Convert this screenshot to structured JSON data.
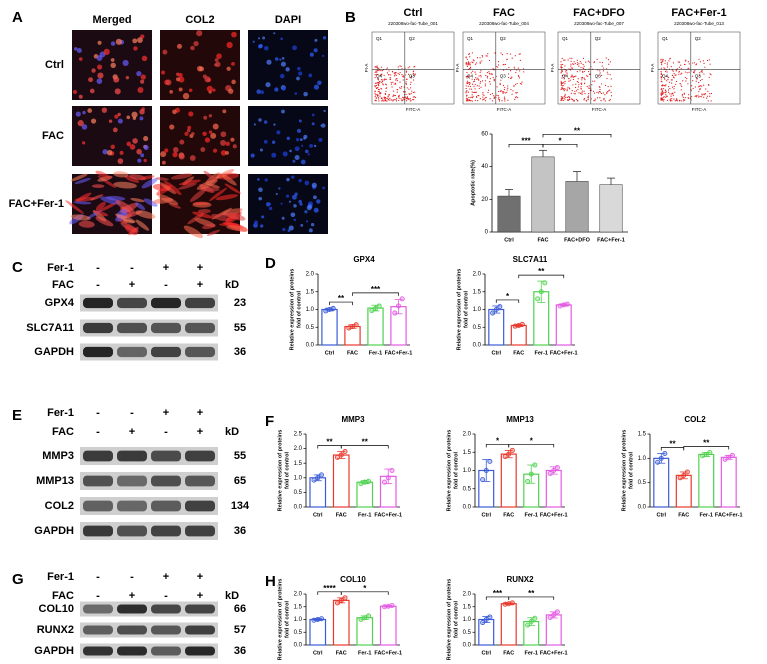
{
  "panels": {
    "A": {
      "label": "A",
      "columns": [
        "Merged",
        "COL2",
        "DAPI"
      ],
      "rows": [
        "Ctrl",
        "FAC",
        "FAC+Fer-1"
      ]
    },
    "B": {
      "label": "B",
      "plots": [
        {
          "title": "Ctrl",
          "tube": "220308wo-fac-Tube_001"
        },
        {
          "title": "FAC",
          "tube": "220308wo-fac-Tube_004"
        },
        {
          "title": "FAC+DFO",
          "tube": "220308wo-fac-Tube_007"
        },
        {
          "title": "FAC+Fer-1",
          "tube": "220308wo-fac-Tube_013"
        }
      ],
      "quadrants": [
        "Q1",
        "Q2",
        "Q3",
        "Q4"
      ],
      "x_axis": "FITC-A",
      "y_axis": "PI-A"
    },
    "C": {
      "label": "C",
      "unit": "kD",
      "treatments": [
        {
          "name": "Fer-1",
          "signs": [
            "-",
            "-",
            "+",
            "+"
          ]
        },
        {
          "name": "FAC",
          "signs": [
            "-",
            "+",
            "-",
            "+"
          ]
        }
      ],
      "bands": [
        {
          "name": "GPX4",
          "kd": 23
        },
        {
          "name": "SLC7A11",
          "kd": 55
        },
        {
          "name": "GAPDH",
          "kd": 36
        }
      ]
    },
    "D": {
      "label": "D"
    },
    "E": {
      "label": "E",
      "unit": "kD",
      "treatments": [
        {
          "name": "Fer-1",
          "signs": [
            "-",
            "-",
            "+",
            "+"
          ]
        },
        {
          "name": "FAC",
          "signs": [
            "-",
            "+",
            "-",
            "+"
          ]
        }
      ],
      "bands": [
        {
          "name": "MMP3",
          "kd": 55
        },
        {
          "name": "MMP13",
          "kd": 65
        },
        {
          "name": "COL2",
          "kd": 134
        },
        {
          "name": "GAPDH",
          "kd": 36
        }
      ]
    },
    "F": {
      "label": "F"
    },
    "G": {
      "label": "G",
      "unit": "kD",
      "treatments": [
        {
          "name": "Fer-1",
          "signs": [
            "-",
            "-",
            "+",
            "+"
          ]
        },
        {
          "name": "FAC",
          "signs": [
            "-",
            "+",
            "-",
            "+"
          ]
        }
      ],
      "bands": [
        {
          "name": "COL10",
          "kd": 66
        },
        {
          "name": "RUNX2",
          "kd": 57
        },
        {
          "name": "GAPDH",
          "kd": 36
        }
      ]
    },
    "H": {
      "label": "H"
    }
  },
  "chart_data": [
    {
      "type": "bar",
      "bar_style": "filled",
      "ylabel": [
        "Apoptotic rate(%)"
      ],
      "categories": [
        "Ctrl",
        "FAC",
        "FAC+DFO",
        "FAC+Fer-1"
      ],
      "values": [
        22,
        46,
        31,
        29
      ],
      "errors": [
        4,
        4,
        6,
        4
      ],
      "colors": [
        "#707070",
        "#c4c4c4",
        "#a6a6a6",
        "#d9d9d9"
      ],
      "ylim": [
        0,
        60
      ],
      "yticks": [
        0,
        20,
        40,
        60
      ],
      "significance": [
        {
          "between": [
            "Ctrl",
            "FAC"
          ],
          "label": "***"
        },
        {
          "between": [
            "FAC",
            "FAC+DFO"
          ],
          "label": "*"
        },
        {
          "between": [
            "FAC",
            "FAC+Fer-1"
          ],
          "label": "**"
        }
      ]
    },
    {
      "type": "bar",
      "bar_style": "outline",
      "title": "GPX4",
      "ylabel": [
        "Relative expression of proteins",
        "fold of control"
      ],
      "categories": [
        "Ctrl",
        "FAC",
        "Fer-1",
        "FAC+Fer-1"
      ],
      "values": [
        1.0,
        0.52,
        1.04,
        1.08
      ],
      "errors": [
        0.04,
        0.05,
        0.08,
        0.2
      ],
      "points": [
        [
          0.96,
          1.0,
          1.03
        ],
        [
          0.48,
          0.52,
          0.57
        ],
        [
          0.97,
          1.03,
          1.1
        ],
        [
          0.9,
          1.1,
          1.3
        ]
      ],
      "colors": [
        "#3b5bd6",
        "#e8392c",
        "#4fd24f",
        "#e35be3"
      ],
      "ylim": [
        0,
        2
      ],
      "yticks": [
        {
          "value": 0,
          "label": "0.0"
        },
        0.5,
        {
          "value": 1,
          "label": "1.0"
        },
        1.5,
        {
          "value": 2,
          "label": "2.0"
        }
      ],
      "significance": [
        {
          "between": [
            "Ctrl",
            "FAC"
          ],
          "label": "**"
        },
        {
          "between": [
            "FAC",
            "FAC+Fer-1"
          ],
          "label": "***"
        }
      ]
    },
    {
      "type": "bar",
      "bar_style": "outline",
      "title": "SLC7A11",
      "ylabel": [
        "Relative expression of proteins",
        "fold of control"
      ],
      "categories": [
        "Ctrl",
        "FAC",
        "Fer-1",
        "FAC+Fer-1"
      ],
      "values": [
        1.0,
        0.55,
        1.5,
        1.13
      ],
      "errors": [
        0.1,
        0.03,
        0.3,
        0.03
      ],
      "points": [
        [
          0.9,
          1.0,
          1.08
        ],
        [
          0.53,
          0.55,
          0.58
        ],
        [
          1.3,
          1.5,
          1.75
        ],
        [
          1.1,
          1.13,
          1.15
        ]
      ],
      "colors": [
        "#3b5bd6",
        "#e8392c",
        "#4fd24f",
        "#e35be3"
      ],
      "ylim": [
        0,
        2
      ],
      "yticks": [
        {
          "value": 0,
          "label": "0.0"
        },
        0.5,
        {
          "value": 1,
          "label": "1.0"
        },
        1.5,
        {
          "value": 2,
          "label": "2.0"
        }
      ],
      "significance": [
        {
          "between": [
            "Ctrl",
            "FAC"
          ],
          "label": "*"
        },
        {
          "between": [
            "FAC",
            "FAC+Fer-1"
          ],
          "label": "**"
        }
      ]
    },
    {
      "type": "bar",
      "bar_style": "outline",
      "title": "MMP3",
      "ylabel": [
        "Relative expression of proteins",
        "fold of control"
      ],
      "categories": [
        "Ctrl",
        "FAC",
        "Fer-1",
        "FAC+Fer-1"
      ],
      "values": [
        1.0,
        1.78,
        0.85,
        1.05
      ],
      "errors": [
        0.1,
        0.12,
        0.05,
        0.25
      ],
      "points": [
        [
          0.92,
          1.0,
          1.1
        ],
        [
          1.7,
          1.78,
          1.9
        ],
        [
          0.8,
          0.85,
          0.88
        ],
        [
          0.85,
          1.0,
          1.25
        ]
      ],
      "colors": [
        "#3b5bd6",
        "#e8392c",
        "#4fd24f",
        "#e35be3"
      ],
      "ylim": [
        0,
        2.5
      ],
      "yticks": [
        {
          "value": 0,
          "label": "0.0"
        },
        0.5,
        {
          "value": 1,
          "label": "1.0"
        },
        1.5,
        {
          "value": 2,
          "label": "2.0"
        },
        2.5
      ],
      "significance": [
        {
          "between": [
            "Ctrl",
            "FAC"
          ],
          "label": "**"
        },
        {
          "between": [
            "FAC",
            "FAC+Fer-1"
          ],
          "label": "**"
        }
      ]
    },
    {
      "type": "bar",
      "bar_style": "outline",
      "title": "MMP13",
      "ylabel": [
        "Relative expression of proteins",
        "fold of control"
      ],
      "categories": [
        "Ctrl",
        "FAC",
        "Fer-1",
        "FAC+Fer-1"
      ],
      "values": [
        1.0,
        1.45,
        0.9,
        1.0
      ],
      "errors": [
        0.3,
        0.1,
        0.25,
        0.1
      ],
      "points": [
        [
          0.75,
          1.0,
          1.25
        ],
        [
          1.38,
          1.45,
          1.55
        ],
        [
          0.7,
          0.9,
          1.15
        ],
        [
          0.92,
          1.0,
          1.08
        ]
      ],
      "colors": [
        "#3b5bd6",
        "#e8392c",
        "#4fd24f",
        "#e35be3"
      ],
      "ylim": [
        0,
        2
      ],
      "yticks": [
        {
          "value": 0,
          "label": "0.0"
        },
        0.5,
        {
          "value": 1,
          "label": "1.0"
        },
        1.5,
        {
          "value": 2,
          "label": "2.0"
        }
      ],
      "significance": [
        {
          "between": [
            "Ctrl",
            "FAC"
          ],
          "label": "*"
        },
        {
          "between": [
            "FAC",
            "FAC+Fer-1"
          ],
          "label": "*"
        }
      ]
    },
    {
      "type": "bar",
      "bar_style": "outline",
      "title": "COL2",
      "ylabel": [
        "Relative expression of proteins",
        "fold of control"
      ],
      "categories": [
        "Ctrl",
        "FAC",
        "Fer-1",
        "FAC+Fer-1"
      ],
      "values": [
        1.0,
        0.65,
        1.08,
        1.02
      ],
      "errors": [
        0.1,
        0.07,
        0.04,
        0.04
      ],
      "points": [
        [
          0.92,
          1.0,
          1.1
        ],
        [
          0.6,
          0.65,
          0.72
        ],
        [
          1.05,
          1.08,
          1.12
        ],
        [
          0.98,
          1.02,
          1.06
        ]
      ],
      "colors": [
        "#3b5bd6",
        "#e8392c",
        "#4fd24f",
        "#e35be3"
      ],
      "ylim": [
        0,
        1.5
      ],
      "yticks": [
        {
          "value": 0,
          "label": "0.0"
        },
        0.5,
        {
          "value": 1,
          "label": "1.0"
        },
        1.5
      ],
      "significance": [
        {
          "between": [
            "Ctrl",
            "FAC"
          ],
          "label": "**"
        },
        {
          "between": [
            "FAC",
            "FAC+Fer-1"
          ],
          "label": "**"
        }
      ]
    },
    {
      "type": "bar",
      "bar_style": "outline",
      "title": "COL10",
      "ylabel": [
        "Relative expression of proteins",
        "fold of control"
      ],
      "categories": [
        "Ctrl",
        "FAC",
        "Fer-1",
        "FAC+Fer-1"
      ],
      "values": [
        1.0,
        1.75,
        1.07,
        1.52
      ],
      "errors": [
        0.04,
        0.1,
        0.07,
        0.03
      ],
      "points": [
        [
          0.97,
          1.0,
          1.03
        ],
        [
          1.65,
          1.75,
          1.85
        ],
        [
          1.0,
          1.07,
          1.14
        ],
        [
          1.5,
          1.52,
          1.55
        ]
      ],
      "colors": [
        "#3b5bd6",
        "#e8392c",
        "#4fd24f",
        "#e35be3"
      ],
      "ylim": [
        0,
        2
      ],
      "yticks": [
        {
          "value": 0,
          "label": "0.0"
        },
        0.5,
        {
          "value": 1,
          "label": "1.0"
        },
        1.5,
        {
          "value": 2,
          "label": "2.0"
        }
      ],
      "significance": [
        {
          "between": [
            "Ctrl",
            "FAC"
          ],
          "label": "****"
        },
        {
          "between": [
            "FAC",
            "FAC+Fer-1"
          ],
          "label": "*"
        }
      ]
    },
    {
      "type": "bar",
      "bar_style": "outline",
      "title": "RUNX2",
      "ylabel": [
        "Relative expression of proteins",
        "fold of control"
      ],
      "categories": [
        "Ctrl",
        "FAC",
        "Fer-1",
        "FAC+Fer-1"
      ],
      "values": [
        1.0,
        1.62,
        0.92,
        1.18
      ],
      "errors": [
        0.12,
        0.03,
        0.15,
        0.12
      ],
      "points": [
        [
          0.88,
          1.0,
          1.1
        ],
        [
          1.6,
          1.62,
          1.65
        ],
        [
          0.78,
          0.92,
          1.05
        ],
        [
          1.08,
          1.18,
          1.3
        ]
      ],
      "colors": [
        "#3b5bd6",
        "#e8392c",
        "#4fd24f",
        "#e35be3"
      ],
      "ylim": [
        0,
        2
      ],
      "yticks": [
        {
          "value": 0,
          "label": "0.0"
        },
        0.5,
        {
          "value": 1,
          "label": "1.0"
        },
        1.5,
        {
          "value": 2,
          "label": "2.0"
        }
      ],
      "significance": [
        {
          "between": [
            "Ctrl",
            "FAC"
          ],
          "label": "***"
        },
        {
          "between": [
            "FAC",
            "FAC+Fer-1"
          ],
          "label": "**"
        }
      ]
    }
  ]
}
